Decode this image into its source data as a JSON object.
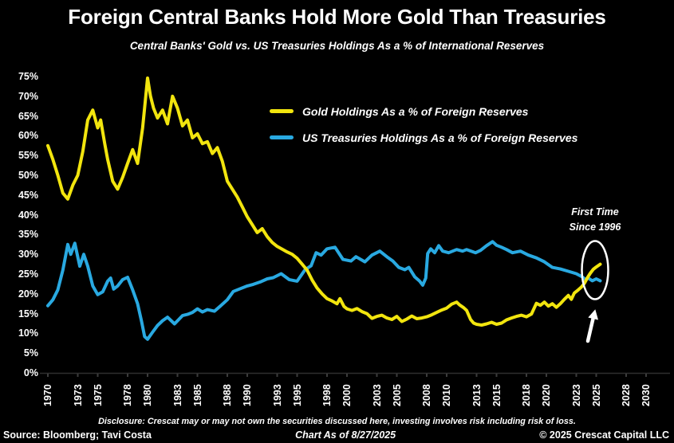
{
  "chart_data": {
    "type": "line",
    "title": "Foreign Central Banks Hold More Gold Than Treasuries",
    "subtitle": "Central Banks' Gold vs. US Treasuries Holdings As a % of International Reserves",
    "background_color": "#000000",
    "text_color": "#ffffff",
    "grid": false,
    "ylim": [
      0,
      75
    ],
    "xlim": [
      1969.6,
      2031
    ],
    "yticks": [
      "0%",
      "5%",
      "10%",
      "15%",
      "20%",
      "25%",
      "30%",
      "35%",
      "40%",
      "45%",
      "50%",
      "55%",
      "60%",
      "65%",
      "70%",
      "75%"
    ],
    "xticks": [
      1970,
      1973,
      1975,
      1978,
      1980,
      1983,
      1985,
      1988,
      1990,
      1993,
      1995,
      1998,
      2000,
      2003,
      2005,
      2008,
      2010,
      2013,
      2015,
      2018,
      2020,
      2023,
      2025,
      2028,
      2030
    ],
    "legend_position": "upper-center-inside",
    "annotation": {
      "line1": "First Time",
      "line2": "Since 1996"
    },
    "series": [
      {
        "name": "Gold Holdings As a % of Foreign Reserves",
        "color": "#f2e50e",
        "points": [
          [
            1970,
            57.5
          ],
          [
            1970.5,
            54
          ],
          [
            1971,
            50
          ],
          [
            1971.5,
            45.5
          ],
          [
            1972,
            44
          ],
          [
            1972.5,
            47.5
          ],
          [
            1973,
            50
          ],
          [
            1973.5,
            56
          ],
          [
            1974,
            64
          ],
          [
            1974.5,
            66.5
          ],
          [
            1975,
            62
          ],
          [
            1975.3,
            64
          ],
          [
            1975.7,
            58
          ],
          [
            1976,
            54
          ],
          [
            1976.5,
            48.5
          ],
          [
            1977,
            46.5
          ],
          [
            1977.5,
            49.5
          ],
          [
            1978,
            53
          ],
          [
            1978.5,
            56.5
          ],
          [
            1979,
            53
          ],
          [
            1979.5,
            62
          ],
          [
            1980,
            74.6
          ],
          [
            1980.3,
            70
          ],
          [
            1980.6,
            67
          ],
          [
            1981,
            64.5
          ],
          [
            1981.5,
            66.5
          ],
          [
            1982,
            63
          ],
          [
            1982.5,
            70
          ],
          [
            1983,
            67
          ],
          [
            1983.5,
            62.5
          ],
          [
            1984,
            64
          ],
          [
            1984.5,
            59.5
          ],
          [
            1985,
            60.5
          ],
          [
            1985.5,
            58
          ],
          [
            1986,
            58.5
          ],
          [
            1986.5,
            55.5
          ],
          [
            1987,
            57
          ],
          [
            1987.5,
            53.5
          ],
          [
            1988,
            48.5
          ],
          [
            1988.5,
            46.5
          ],
          [
            1989,
            44.5
          ],
          [
            1989.5,
            42
          ],
          [
            1990,
            39.5
          ],
          [
            1990.5,
            37.5
          ],
          [
            1991,
            35.5
          ],
          [
            1991.5,
            36.5
          ],
          [
            1992,
            34.5
          ],
          [
            1992.5,
            33
          ],
          [
            1993,
            32
          ],
          [
            1993.5,
            31.3
          ],
          [
            1994,
            30.6
          ],
          [
            1994.5,
            30
          ],
          [
            1995,
            29
          ],
          [
            1995.5,
            27.5
          ],
          [
            1996,
            26
          ],
          [
            1996.5,
            23.5
          ],
          [
            1997,
            21.5
          ],
          [
            1997.5,
            20
          ],
          [
            1998,
            18.8
          ],
          [
            1998.5,
            18.2
          ],
          [
            1999,
            17.5
          ],
          [
            1999.3,
            18.8
          ],
          [
            1999.7,
            16.8
          ],
          [
            2000,
            16.2
          ],
          [
            2000.5,
            15.8
          ],
          [
            2001,
            16.3
          ],
          [
            2001.5,
            15.5
          ],
          [
            2002,
            15
          ],
          [
            2002.5,
            13.8
          ],
          [
            2003,
            14.3
          ],
          [
            2003.5,
            14.6
          ],
          [
            2004,
            13.9
          ],
          [
            2004.5,
            13.5
          ],
          [
            2005,
            14.3
          ],
          [
            2005.5,
            13
          ],
          [
            2006,
            13.6
          ],
          [
            2006.5,
            14.4
          ],
          [
            2007,
            13.7
          ],
          [
            2007.5,
            13.9
          ],
          [
            2008,
            14.2
          ],
          [
            2008.5,
            14.7
          ],
          [
            2009,
            15.3
          ],
          [
            2009.5,
            15.9
          ],
          [
            2010,
            16.4
          ],
          [
            2010.5,
            17.4
          ],
          [
            2011,
            17.9
          ],
          [
            2011.3,
            17.2
          ],
          [
            2011.7,
            16.5
          ],
          [
            2012,
            15.8
          ],
          [
            2012.4,
            13.5
          ],
          [
            2012.7,
            12.6
          ],
          [
            2013,
            12.3
          ],
          [
            2013.5,
            12.1
          ],
          [
            2014,
            12.4
          ],
          [
            2014.5,
            12.8
          ],
          [
            2015,
            12.3
          ],
          [
            2015.5,
            12.6
          ],
          [
            2016,
            13.4
          ],
          [
            2016.5,
            13.9
          ],
          [
            2017,
            14.3
          ],
          [
            2017.5,
            14.6
          ],
          [
            2018,
            14.2
          ],
          [
            2018.5,
            14.9
          ],
          [
            2019,
            17.6
          ],
          [
            2019.4,
            17.1
          ],
          [
            2019.8,
            17.9
          ],
          [
            2020.2,
            16.9
          ],
          [
            2020.6,
            17.5
          ],
          [
            2021,
            16.6
          ],
          [
            2021.4,
            17.5
          ],
          [
            2021.8,
            18.6
          ],
          [
            2022.2,
            19.6
          ],
          [
            2022.5,
            18.6
          ],
          [
            2022.8,
            20.2
          ],
          [
            2023.2,
            21
          ],
          [
            2023.5,
            21.7
          ],
          [
            2023.8,
            22.6
          ],
          [
            2024.1,
            24
          ],
          [
            2024.4,
            25.2
          ],
          [
            2024.7,
            26.2
          ],
          [
            2025,
            26.8
          ],
          [
            2025.4,
            27.5
          ]
        ]
      },
      {
        "name": "US Treasuries Holdings As a % of Foreign Reserves",
        "color": "#29a9e1",
        "points": [
          [
            1970,
            17
          ],
          [
            1970.5,
            18.5
          ],
          [
            1971,
            21
          ],
          [
            1971.5,
            26
          ],
          [
            1972,
            32.5
          ],
          [
            1972.3,
            30
          ],
          [
            1972.7,
            32.8
          ],
          [
            1973.2,
            27
          ],
          [
            1973.6,
            30
          ],
          [
            1974,
            27
          ],
          [
            1974.5,
            22
          ],
          [
            1975,
            19.8
          ],
          [
            1975.5,
            20.5
          ],
          [
            1976,
            23.2
          ],
          [
            1976.3,
            24
          ],
          [
            1976.6,
            21.2
          ],
          [
            1977,
            22
          ],
          [
            1977.5,
            23.6
          ],
          [
            1978,
            24.2
          ],
          [
            1978.5,
            21
          ],
          [
            1979,
            17.5
          ],
          [
            1979.4,
            13
          ],
          [
            1979.7,
            9.2
          ],
          [
            1980,
            8.5
          ],
          [
            1980.5,
            10.3
          ],
          [
            1981,
            12
          ],
          [
            1981.5,
            13.2
          ],
          [
            1982,
            14.1
          ],
          [
            1982.7,
            12.4
          ],
          [
            1983.5,
            14.5
          ],
          [
            1984,
            14.8
          ],
          [
            1984.5,
            15.3
          ],
          [
            1985,
            16.2
          ],
          [
            1985.5,
            15.4
          ],
          [
            1986,
            16
          ],
          [
            1986.7,
            15.6
          ],
          [
            1987.3,
            16.9
          ],
          [
            1988,
            18.5
          ],
          [
            1988.6,
            20.6
          ],
          [
            1989.2,
            21.2
          ],
          [
            1990,
            22
          ],
          [
            1990.6,
            22.4
          ],
          [
            1991.3,
            23
          ],
          [
            1992,
            23.8
          ],
          [
            1992.6,
            24.1
          ],
          [
            1993.4,
            25.1
          ],
          [
            1994.2,
            23.6
          ],
          [
            1995,
            23.2
          ],
          [
            1995.8,
            26.1
          ],
          [
            1996.4,
            27.1
          ],
          [
            1996.9,
            30.4
          ],
          [
            1997.4,
            29.8
          ],
          [
            1998,
            31.4
          ],
          [
            1998.8,
            31.8
          ],
          [
            1999.6,
            28.7
          ],
          [
            2000.4,
            28.3
          ],
          [
            2000.9,
            29.4
          ],
          [
            2001.8,
            28.1
          ],
          [
            2002.5,
            29.8
          ],
          [
            2003.3,
            30.8
          ],
          [
            2004,
            29.4
          ],
          [
            2004.6,
            28.3
          ],
          [
            2005.2,
            26.7
          ],
          [
            2005.8,
            26.1
          ],
          [
            2006.2,
            26.7
          ],
          [
            2006.8,
            24.3
          ],
          [
            2007.3,
            23.2
          ],
          [
            2007.6,
            22.2
          ],
          [
            2007.9,
            24
          ],
          [
            2008.1,
            30.2
          ],
          [
            2008.4,
            31.4
          ],
          [
            2008.8,
            30.4
          ],
          [
            2009.2,
            32.2
          ],
          [
            2009.6,
            30.8
          ],
          [
            2010.2,
            30.4
          ],
          [
            2011,
            31.2
          ],
          [
            2011.6,
            30.8
          ],
          [
            2012,
            31.2
          ],
          [
            2012.9,
            30.4
          ],
          [
            2013.4,
            31
          ],
          [
            2014,
            32.2
          ],
          [
            2014.6,
            33.2
          ],
          [
            2015,
            32.3
          ],
          [
            2015.5,
            31.8
          ],
          [
            2016,
            31.2
          ],
          [
            2016.6,
            30.4
          ],
          [
            2017.4,
            30.8
          ],
          [
            2018.2,
            29.8
          ],
          [
            2019,
            29.1
          ],
          [
            2019.8,
            28.1
          ],
          [
            2020.6,
            26.7
          ],
          [
            2021.4,
            26.3
          ],
          [
            2022.2,
            25.7
          ],
          [
            2023,
            25.1
          ],
          [
            2023.6,
            24.3
          ],
          [
            2023.9,
            23.6
          ],
          [
            2024.2,
            24
          ],
          [
            2024.6,
            23.3
          ],
          [
            2025,
            23.8
          ],
          [
            2025.4,
            23.3
          ]
        ]
      }
    ]
  },
  "footer": {
    "disclosure": "Disclosure: Crescat may or may not own the securities discussed here, investing involves risk including risk of loss.",
    "source": "Source: Bloomberg; Tavi Costa",
    "as_of": "Chart As of 8/27/2025",
    "copyright": "© 2025 Crescat Capital LLC"
  }
}
